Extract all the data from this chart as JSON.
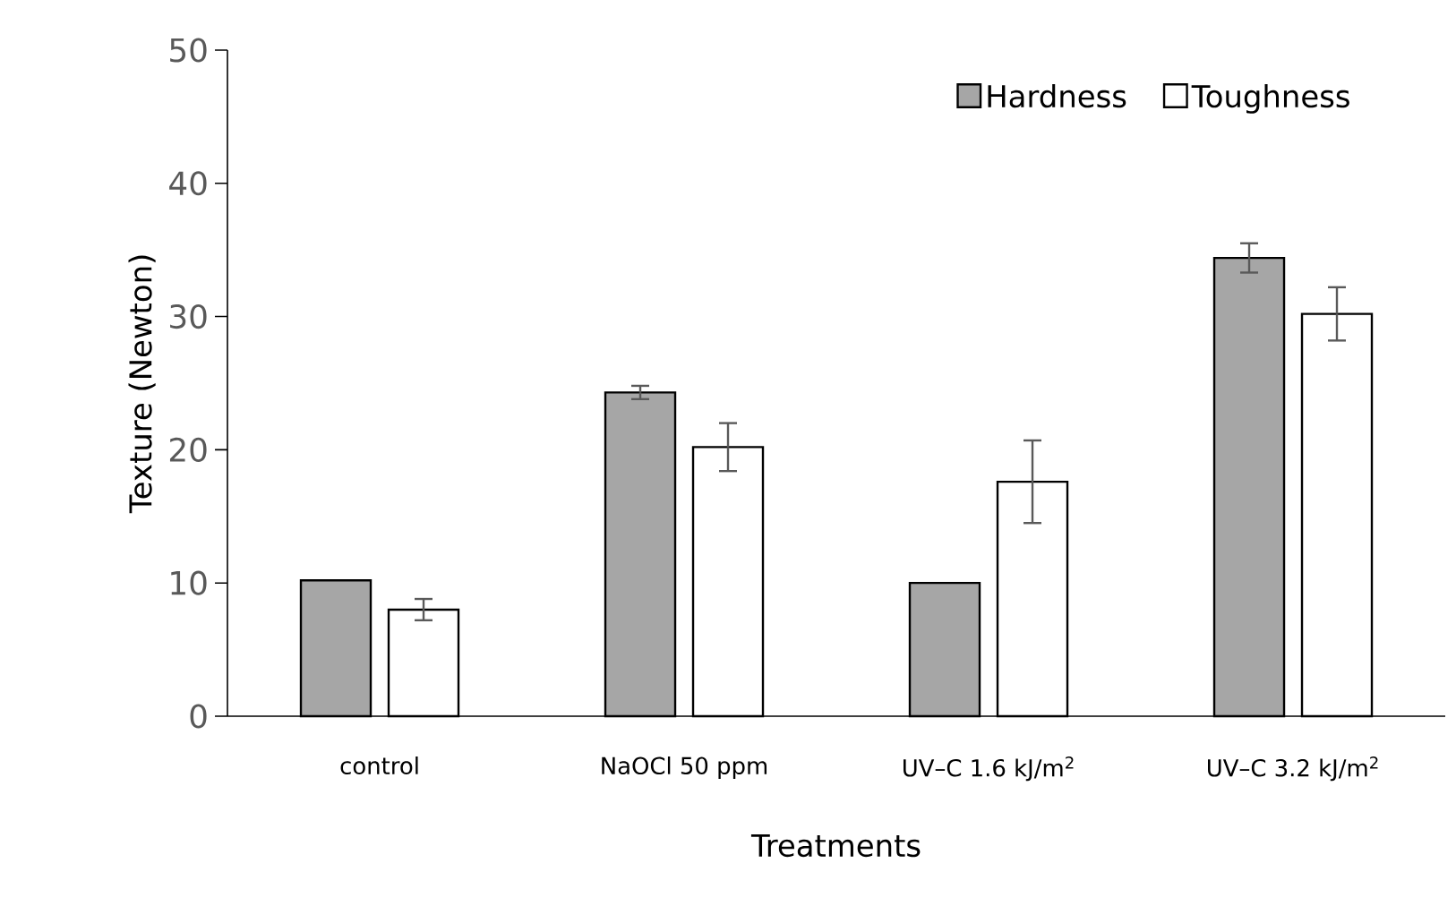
{
  "chart_data": {
    "type": "bar",
    "xlabel": "Treatments",
    "ylabel": "Texture (Newton)",
    "categories": [
      "control",
      "NaOCl 50 ppm",
      "UV–C 1.6 kJ/m$^{2}$",
      "UV–C 3.2 kJ/m$^{2}$"
    ],
    "series": [
      {
        "name": "Hardness",
        "color": "#a6a6a6",
        "values": [
          10.2,
          24.3,
          10.0,
          34.4
        ],
        "errors": [
          null,
          0.5,
          null,
          1.1
        ]
      },
      {
        "name": "Toughness",
        "color": "#ffffff",
        "values": [
          8.0,
          20.2,
          17.6,
          30.2
        ],
        "errors": [
          0.8,
          1.8,
          3.1,
          2.0
        ]
      }
    ],
    "ylim": [
      0,
      50
    ],
    "yticks": [
      0,
      10,
      20,
      30,
      40,
      50
    ],
    "legend": "top right"
  }
}
